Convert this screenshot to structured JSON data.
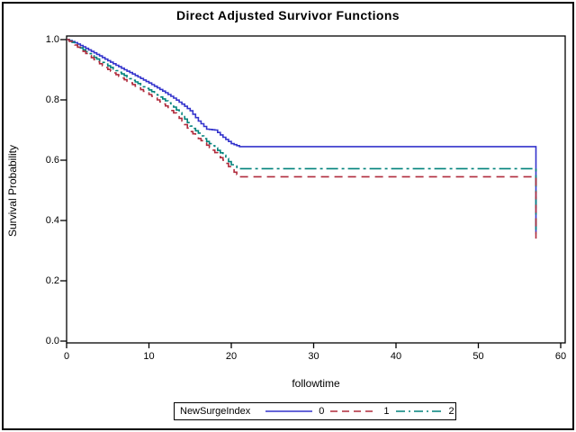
{
  "window": {
    "background": "#ffffff",
    "border_color": "#000000"
  },
  "chart_data": {
    "type": "line",
    "subtype": "step-survival-curves",
    "title": "Direct Adjusted Survivor Functions",
    "xlabel": "followtime",
    "ylabel": "Survival Probability",
    "xlim": [
      0,
      60
    ],
    "ylim": [
      0.0,
      1.0
    ],
    "grid": false,
    "x_tick_labels": [
      "0",
      "10",
      "20",
      "30",
      "40",
      "50",
      "60"
    ],
    "y_tick_labels": [
      "1.0",
      "0.8",
      "0.6",
      "0.4",
      "0.2",
      "0.0"
    ],
    "frame": true,
    "legend": {
      "title": "NewSurgeIndex",
      "position": "bottom-center",
      "border": true
    },
    "series": [
      {
        "name": "0",
        "color": "#3333CC",
        "linestyle": "solid",
        "points": [
          [
            0,
            1.0
          ],
          [
            1,
            0.99
          ],
          [
            2,
            0.976
          ],
          [
            3,
            0.961
          ],
          [
            4,
            0.946
          ],
          [
            5,
            0.93
          ],
          [
            6,
            0.915
          ],
          [
            7,
            0.9
          ],
          [
            8,
            0.886
          ],
          [
            9,
            0.871
          ],
          [
            10,
            0.856
          ],
          [
            11,
            0.84
          ],
          [
            12,
            0.824
          ],
          [
            13,
            0.806
          ],
          [
            14,
            0.786
          ],
          [
            15,
            0.764
          ],
          [
            16,
            0.73
          ],
          [
            17,
            0.703
          ],
          [
            18,
            0.7
          ],
          [
            19,
            0.676
          ],
          [
            20,
            0.655
          ],
          [
            21,
            0.645
          ],
          [
            57,
            0.645
          ],
          [
            57,
            0.36
          ]
        ]
      },
      {
        "name": "1",
        "color": "#B02B3C",
        "linestyle": "dashed",
        "points": [
          [
            0,
            1.0
          ],
          [
            1,
            0.982
          ],
          [
            2,
            0.961
          ],
          [
            3,
            0.94
          ],
          [
            4,
            0.92
          ],
          [
            5,
            0.901
          ],
          [
            6,
            0.884
          ],
          [
            7,
            0.867
          ],
          [
            8,
            0.851
          ],
          [
            9,
            0.834
          ],
          [
            10,
            0.818
          ],
          [
            11,
            0.8
          ],
          [
            12,
            0.78
          ],
          [
            13,
            0.757
          ],
          [
            14,
            0.73
          ],
          [
            15,
            0.695
          ],
          [
            16,
            0.672
          ],
          [
            17,
            0.65
          ],
          [
            18,
            0.625
          ],
          [
            19,
            0.6
          ],
          [
            20,
            0.568
          ],
          [
            21,
            0.545
          ],
          [
            57,
            0.545
          ],
          [
            57,
            0.34
          ]
        ]
      },
      {
        "name": "2",
        "color": "#00827B",
        "linestyle": "dashdot",
        "points": [
          [
            0,
            1.0
          ],
          [
            1,
            0.986
          ],
          [
            2,
            0.966
          ],
          [
            3,
            0.947
          ],
          [
            4,
            0.93
          ],
          [
            5,
            0.913
          ],
          [
            6,
            0.897
          ],
          [
            7,
            0.881
          ],
          [
            8,
            0.865
          ],
          [
            9,
            0.849
          ],
          [
            10,
            0.833
          ],
          [
            11,
            0.816
          ],
          [
            12,
            0.797
          ],
          [
            13,
            0.776
          ],
          [
            14,
            0.748
          ],
          [
            15,
            0.713
          ],
          [
            16,
            0.69
          ],
          [
            17,
            0.662
          ],
          [
            18,
            0.641
          ],
          [
            19,
            0.616
          ],
          [
            20,
            0.585
          ],
          [
            21,
            0.572
          ],
          [
            57,
            0.572
          ],
          [
            57,
            0.355
          ]
        ]
      }
    ]
  }
}
